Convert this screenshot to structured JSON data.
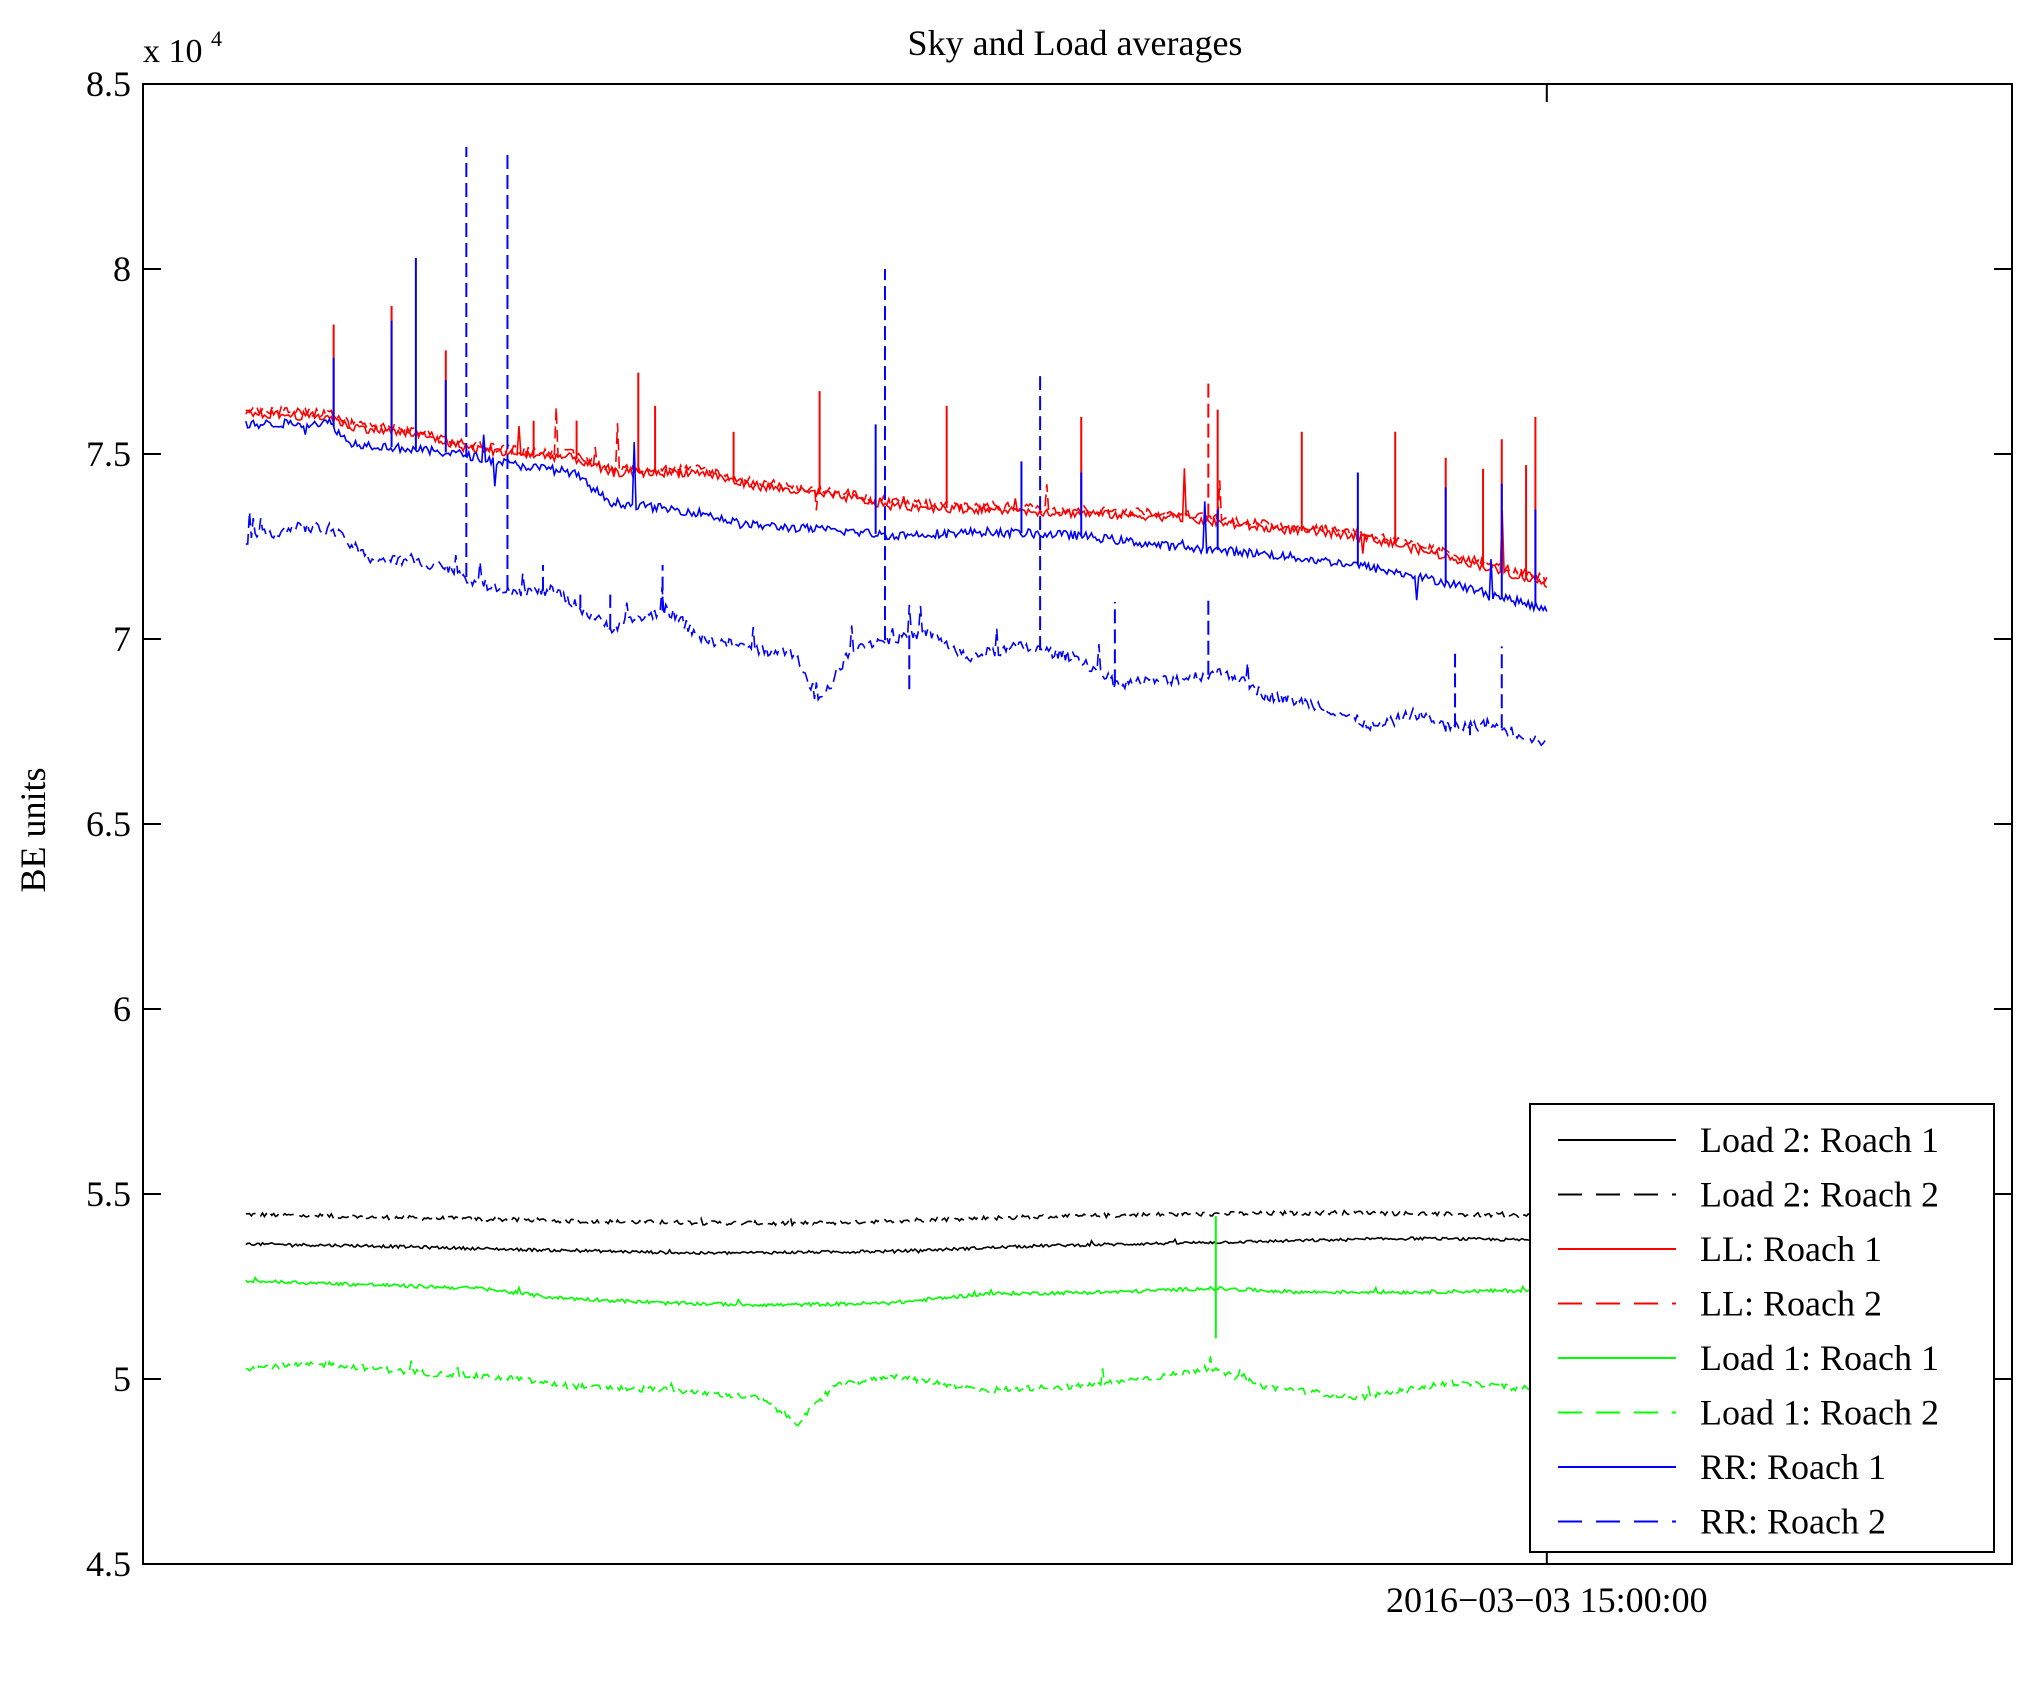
{
  "chart_data": {
    "type": "line",
    "title": "Sky and Load averages",
    "xlabel": "",
    "ylabel": "BE units",
    "y_multiplier_base": "x 10",
    "y_multiplier_exp": "4",
    "ylim": [
      4.5,
      8.5
    ],
    "y_ticks": [
      4.5,
      5,
      5.5,
      6,
      6.5,
      7,
      7.5,
      8,
      8.5
    ],
    "y_tick_labels": [
      "4.5",
      "5",
      "5.5",
      "6",
      "6.5",
      "7",
      "7.5",
      "8",
      "8.5"
    ],
    "xlim": [
      0,
      1
    ],
    "x_ticks": [
      0.7511
    ],
    "x_tick_labels": [
      "2016−03−03 15:00:00"
    ],
    "grid": false,
    "legend_position": "bottom-right",
    "series": [
      {
        "name": "Load 2: Roach 1",
        "color": "#000000",
        "dashed": false,
        "x_end": 0.7511,
        "knots": [
          [
            0.055,
            5.365
          ],
          [
            0.12,
            5.36
          ],
          [
            0.2,
            5.35
          ],
          [
            0.3,
            5.34
          ],
          [
            0.4,
            5.345
          ],
          [
            0.48,
            5.36
          ],
          [
            0.58,
            5.37
          ],
          [
            0.68,
            5.38
          ],
          [
            0.7511,
            5.375
          ]
        ],
        "noise": 0.004,
        "spike_prob": 0.02,
        "spike_amp": 0.008,
        "spikes": []
      },
      {
        "name": "Load 2: Roach 2",
        "color": "#000000",
        "dashed": true,
        "x_end": 0.7511,
        "knots": [
          [
            0.055,
            5.445
          ],
          [
            0.15,
            5.435
          ],
          [
            0.25,
            5.425
          ],
          [
            0.35,
            5.42
          ],
          [
            0.45,
            5.435
          ],
          [
            0.55,
            5.445
          ],
          [
            0.65,
            5.45
          ],
          [
            0.7511,
            5.44
          ]
        ],
        "noise": 0.006,
        "spike_prob": 0.02,
        "spike_amp": 0.01,
        "spikes": []
      },
      {
        "name": "LL: Roach 1",
        "color": "#ff0000",
        "dashed": false,
        "x_end": 0.7511,
        "knots": [
          [
            0.055,
            7.61
          ],
          [
            0.1,
            7.6
          ],
          [
            0.11,
            7.575
          ],
          [
            0.15,
            7.55
          ],
          [
            0.17,
            7.52
          ],
          [
            0.2,
            7.5
          ],
          [
            0.23,
            7.49
          ],
          [
            0.25,
            7.45
          ],
          [
            0.3,
            7.45
          ],
          [
            0.32,
            7.42
          ],
          [
            0.38,
            7.38
          ],
          [
            0.4,
            7.36
          ],
          [
            0.45,
            7.35
          ],
          [
            0.5,
            7.34
          ],
          [
            0.55,
            7.33
          ],
          [
            0.6,
            7.3
          ],
          [
            0.65,
            7.28
          ],
          [
            0.7,
            7.22
          ],
          [
            0.7511,
            7.15
          ]
        ],
        "noise": 0.012,
        "spike_prob": 0.015,
        "spike_amp": 0.12,
        "spikes": [
          [
            0.102,
            7.85
          ],
          [
            0.133,
            7.9
          ],
          [
            0.162,
            7.78
          ],
          [
            0.209,
            7.59
          ],
          [
            0.232,
            7.59
          ],
          [
            0.265,
            7.72
          ],
          [
            0.274,
            7.63
          ],
          [
            0.316,
            7.56
          ],
          [
            0.362,
            7.67
          ],
          [
            0.43,
            7.63
          ],
          [
            0.502,
            7.6
          ],
          [
            0.575,
            7.62
          ],
          [
            0.62,
            7.56
          ],
          [
            0.67,
            7.56
          ],
          [
            0.745,
            7.6
          ],
          [
            0.727,
            7.54
          ],
          [
            0.697,
            7.49
          ],
          [
            0.717,
            7.46
          ],
          [
            0.74,
            7.47
          ]
        ]
      },
      {
        "name": "LL: Roach 2",
        "color": "#ff0000",
        "dashed": true,
        "x_end": 0.7511,
        "knots": [
          [
            0.055,
            7.62
          ],
          [
            0.1,
            7.61
          ],
          [
            0.11,
            7.585
          ],
          [
            0.15,
            7.56
          ],
          [
            0.17,
            7.53
          ],
          [
            0.2,
            7.51
          ],
          [
            0.23,
            7.5
          ],
          [
            0.25,
            7.46
          ],
          [
            0.3,
            7.46
          ],
          [
            0.32,
            7.43
          ],
          [
            0.38,
            7.39
          ],
          [
            0.4,
            7.37
          ],
          [
            0.45,
            7.36
          ],
          [
            0.5,
            7.35
          ],
          [
            0.55,
            7.34
          ],
          [
            0.6,
            7.31
          ],
          [
            0.65,
            7.29
          ],
          [
            0.7,
            7.23
          ],
          [
            0.7511,
            7.16
          ]
        ],
        "noise": 0.012,
        "spike_prob": 0.01,
        "spike_amp": 0.1,
        "spikes": [
          [
            0.57,
            7.7
          ]
        ]
      },
      {
        "name": "Load 1: Roach 1",
        "color": "#00ff00",
        "dashed": false,
        "x_end": 0.7511,
        "knots": [
          [
            0.055,
            5.265
          ],
          [
            0.12,
            5.255
          ],
          [
            0.18,
            5.245
          ],
          [
            0.22,
            5.22
          ],
          [
            0.28,
            5.205
          ],
          [
            0.34,
            5.2
          ],
          [
            0.4,
            5.205
          ],
          [
            0.45,
            5.23
          ],
          [
            0.52,
            5.235
          ],
          [
            0.57,
            5.245
          ],
          [
            0.62,
            5.235
          ],
          [
            0.68,
            5.235
          ],
          [
            0.7511,
            5.24
          ]
        ],
        "noise": 0.005,
        "spike_prob": 0.02,
        "spike_amp": 0.01,
        "spikes": [
          [
            0.574,
            5.44
          ],
          [
            0.574,
            5.11
          ]
        ]
      },
      {
        "name": "Load 1: Roach 2",
        "color": "#00ff00",
        "dashed": true,
        "x_end": 0.7511,
        "knots": [
          [
            0.055,
            5.03
          ],
          [
            0.1,
            5.04
          ],
          [
            0.14,
            5.02
          ],
          [
            0.2,
            5.0
          ],
          [
            0.23,
            4.98
          ],
          [
            0.28,
            4.97
          ],
          [
            0.33,
            4.95
          ],
          [
            0.35,
            4.88
          ],
          [
            0.37,
            4.98
          ],
          [
            0.4,
            5.01
          ],
          [
            0.45,
            4.97
          ],
          [
            0.5,
            4.98
          ],
          [
            0.55,
            5.01
          ],
          [
            0.57,
            5.03
          ],
          [
            0.6,
            4.98
          ],
          [
            0.65,
            4.95
          ],
          [
            0.7,
            4.99
          ],
          [
            0.7511,
            4.97
          ]
        ],
        "noise": 0.008,
        "spike_prob": 0.03,
        "spike_amp": 0.03,
        "spikes": []
      },
      {
        "name": "RR: Roach 1",
        "color": "#0000ff",
        "dashed": false,
        "x_end": 0.7511,
        "knots": [
          [
            0.055,
            7.58
          ],
          [
            0.1,
            7.585
          ],
          [
            0.11,
            7.53
          ],
          [
            0.15,
            7.51
          ],
          [
            0.17,
            7.5
          ],
          [
            0.2,
            7.47
          ],
          [
            0.23,
            7.45
          ],
          [
            0.25,
            7.37
          ],
          [
            0.3,
            7.34
          ],
          [
            0.32,
            7.31
          ],
          [
            0.38,
            7.29
          ],
          [
            0.4,
            7.28
          ],
          [
            0.45,
            7.29
          ],
          [
            0.5,
            7.28
          ],
          [
            0.55,
            7.25
          ],
          [
            0.6,
            7.23
          ],
          [
            0.65,
            7.2
          ],
          [
            0.7,
            7.15
          ],
          [
            0.7511,
            7.08
          ]
        ],
        "noise": 0.012,
        "spike_prob": 0.015,
        "spike_amp": 0.12,
        "spikes": [
          [
            0.102,
            7.76
          ],
          [
            0.133,
            7.86
          ],
          [
            0.146,
            8.03
          ],
          [
            0.162,
            7.7
          ],
          [
            0.392,
            7.58
          ],
          [
            0.47,
            7.48
          ],
          [
            0.502,
            7.45
          ],
          [
            0.575,
            7.35
          ],
          [
            0.65,
            7.45
          ],
          [
            0.697,
            7.41
          ],
          [
            0.727,
            7.42
          ],
          [
            0.745,
            7.35
          ]
        ]
      },
      {
        "name": "RR: Roach 2",
        "color": "#0000ff",
        "dashed": true,
        "x_end": 0.7511,
        "knots": [
          [
            0.055,
            7.27
          ],
          [
            0.08,
            7.3
          ],
          [
            0.1,
            7.3
          ],
          [
            0.12,
            7.22
          ],
          [
            0.16,
            7.2
          ],
          [
            0.18,
            7.15
          ],
          [
            0.2,
            7.13
          ],
          [
            0.22,
            7.13
          ],
          [
            0.25,
            7.03
          ],
          [
            0.28,
            7.08
          ],
          [
            0.3,
            7.0
          ],
          [
            0.33,
            6.97
          ],
          [
            0.35,
            6.96
          ],
          [
            0.36,
            6.82
          ],
          [
            0.38,
            6.98
          ],
          [
            0.42,
            7.02
          ],
          [
            0.44,
            6.95
          ],
          [
            0.47,
            6.98
          ],
          [
            0.5,
            6.95
          ],
          [
            0.52,
            6.88
          ],
          [
            0.55,
            6.89
          ],
          [
            0.58,
            6.91
          ],
          [
            0.6,
            6.85
          ],
          [
            0.63,
            6.82
          ],
          [
            0.66,
            6.76
          ],
          [
            0.68,
            6.8
          ],
          [
            0.7,
            6.76
          ],
          [
            0.72,
            6.77
          ],
          [
            0.7511,
            6.72
          ]
        ],
        "noise": 0.015,
        "spike_prob": 0.03,
        "spike_amp": 0.06,
        "spikes": [
          [
            0.173,
            8.33
          ],
          [
            0.195,
            8.32
          ],
          [
            0.214,
            7.2
          ],
          [
            0.234,
            7.12
          ],
          [
            0.25,
            7.12
          ],
          [
            0.278,
            7.2
          ],
          [
            0.397,
            8.0
          ],
          [
            0.41,
            6.85
          ],
          [
            0.48,
            7.72
          ],
          [
            0.52,
            7.1
          ],
          [
            0.57,
            7.12
          ],
          [
            0.702,
            6.96
          ],
          [
            0.727,
            6.98
          ],
          [
            0.71,
            6.74
          ],
          [
            0.697,
            6.75
          ]
        ]
      }
    ]
  }
}
